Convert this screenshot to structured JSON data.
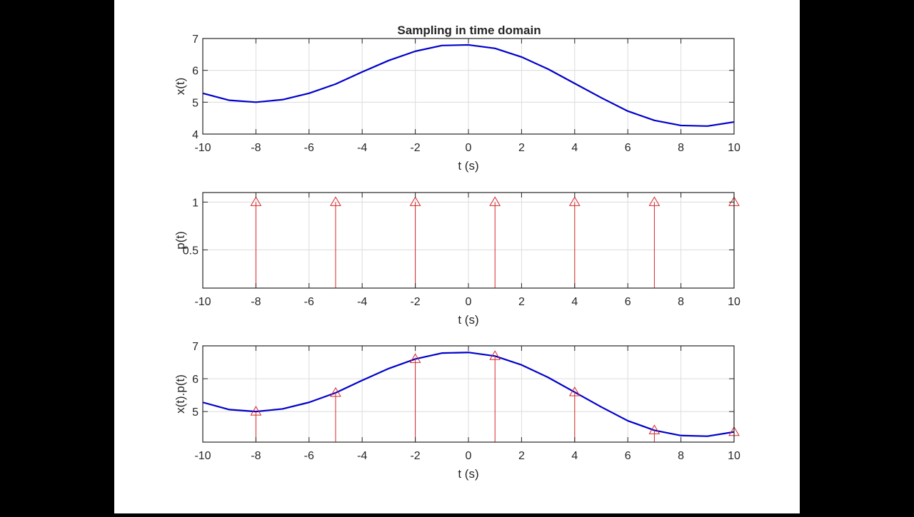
{
  "figure": {
    "title": "Sampling in time domain",
    "background": "#ffffff",
    "letterbox_color": "#000000"
  },
  "chart_data": [
    {
      "type": "line",
      "id": "signal",
      "title": "Sampling in time domain",
      "xlabel": "t (s)",
      "ylabel": "x(t)",
      "xlim": [
        -10,
        10
      ],
      "ylim": [
        4,
        7
      ],
      "xticks": [
        -10,
        -8,
        -6,
        -4,
        -2,
        0,
        2,
        4,
        6,
        8,
        10
      ],
      "yticks": [
        4,
        5,
        6,
        7
      ],
      "grid": true,
      "series": [
        {
          "name": "x(t)",
          "color": "#0000cc",
          "x": [
            -10,
            -9,
            -8,
            -7,
            -6,
            -5,
            -4,
            -3,
            -2,
            -1,
            0,
            1,
            2,
            3,
            4,
            5,
            6,
            7,
            8,
            9,
            10
          ],
          "y": [
            5.28,
            5.06,
            5.0,
            5.08,
            5.28,
            5.57,
            5.95,
            6.31,
            6.6,
            6.78,
            6.8,
            6.69,
            6.42,
            6.04,
            5.59,
            5.14,
            4.72,
            4.43,
            4.27,
            4.25,
            4.38
          ]
        }
      ]
    },
    {
      "type": "stem",
      "id": "impulse-train",
      "title": "",
      "xlabel": "t (s)",
      "ylabel": "p(t)",
      "xlim": [
        -10,
        10
      ],
      "ylim": [
        0.1,
        1.1
      ],
      "xticks": [
        -10,
        -8,
        -6,
        -4,
        -2,
        0,
        2,
        4,
        6,
        8,
        10
      ],
      "yticks": [
        0.5,
        1
      ],
      "ytick_labels": [
        "0.5",
        "1"
      ],
      "grid": true,
      "series": [
        {
          "name": "p(t)",
          "color": "#d62728",
          "marker": "triangle-up",
          "x": [
            -8,
            -5,
            -2,
            1,
            4,
            7,
            10
          ],
          "y": [
            1,
            1,
            1,
            1,
            1,
            1,
            1
          ]
        }
      ]
    },
    {
      "type": "line+stem",
      "id": "sampled-signal",
      "title": "",
      "xlabel": "t (s)",
      "ylabel": "x(t).p(t)",
      "xlim": [
        -10,
        10
      ],
      "ylim": [
        4.07,
        7
      ],
      "xticks": [
        -10,
        -8,
        -6,
        -4,
        -2,
        0,
        2,
        4,
        6,
        8,
        10
      ],
      "yticks": [
        5,
        6,
        7
      ],
      "grid": true,
      "series": [
        {
          "name": "x(t)",
          "color": "#0000cc",
          "x": [
            -10,
            -9,
            -8,
            -7,
            -6,
            -5,
            -4,
            -3,
            -2,
            -1,
            0,
            1,
            2,
            3,
            4,
            5,
            6,
            7,
            8,
            9,
            10
          ],
          "y": [
            5.28,
            5.06,
            5.0,
            5.08,
            5.28,
            5.57,
            5.95,
            6.31,
            6.6,
            6.78,
            6.8,
            6.69,
            6.42,
            6.04,
            5.59,
            5.14,
            4.72,
            4.43,
            4.27,
            4.25,
            4.38
          ]
        },
        {
          "name": "x(t).p(t)",
          "color": "#d62728",
          "marker": "triangle-up",
          "x": [
            -8,
            -5,
            -2,
            1,
            4,
            7,
            10
          ],
          "y": [
            5.0,
            5.57,
            6.6,
            6.69,
            5.59,
            4.43,
            4.38
          ]
        }
      ]
    }
  ]
}
